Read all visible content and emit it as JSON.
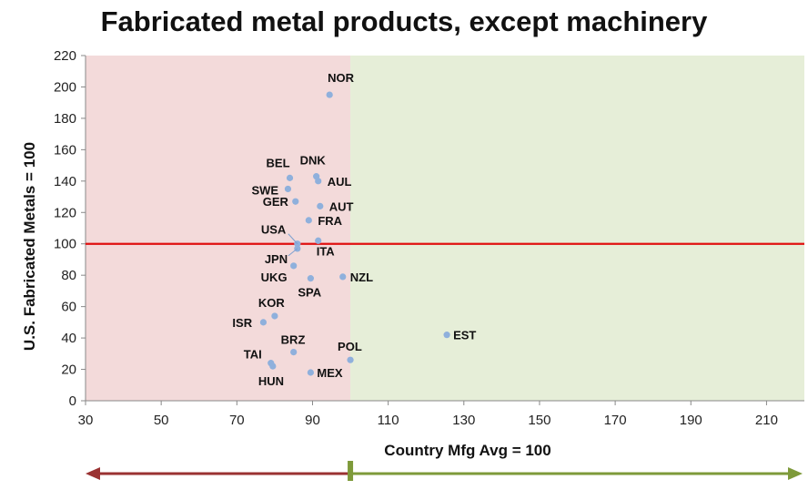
{
  "chart_data": {
    "type": "scatter",
    "title": "Fabricated metal products, except machinery",
    "xlabel": "Country Mfg Avg = 100",
    "ylabel": "U.S. Fabricated Metals = 100",
    "xlim": [
      30,
      220
    ],
    "ylim": [
      0,
      220
    ],
    "x_ticks": [
      30,
      50,
      70,
      90,
      110,
      130,
      150,
      170,
      190,
      210
    ],
    "y_ticks": [
      0,
      20,
      40,
      60,
      80,
      100,
      120,
      140,
      160,
      180,
      200,
      220
    ],
    "reference_lines": {
      "horizontal_y": 100,
      "vertical_x": 100
    },
    "colors": {
      "left_region": "#f3dada",
      "right_region": "#e6eed8",
      "reference_line": "#e01010",
      "points": "#8fb0dc",
      "left_arrow": "#9a3232",
      "right_arrow": "#7e9a3a"
    },
    "points": [
      {
        "label": "NOR",
        "x": 94.5,
        "y": 195
      },
      {
        "label": "DNK",
        "x": 91,
        "y": 143
      },
      {
        "label": "BEL",
        "x": 84,
        "y": 142
      },
      {
        "label": "AUL",
        "x": 91.5,
        "y": 140
      },
      {
        "label": "SWE",
        "x": 83.5,
        "y": 135
      },
      {
        "label": "GER",
        "x": 85.5,
        "y": 127
      },
      {
        "label": "AUT",
        "x": 92,
        "y": 124
      },
      {
        "label": "FRA",
        "x": 89,
        "y": 115
      },
      {
        "label": "USA",
        "x": 86,
        "y": 100
      },
      {
        "label": "ITA",
        "x": 91.5,
        "y": 102
      },
      {
        "label": "JPN",
        "x": 86,
        "y": 97
      },
      {
        "label": "UKG",
        "x": 85,
        "y": 86
      },
      {
        "label": "SPA",
        "x": 89.5,
        "y": 78
      },
      {
        "label": "NZL",
        "x": 98,
        "y": 79
      },
      {
        "label": "KOR",
        "x": 80,
        "y": 54
      },
      {
        "label": "ISR",
        "x": 77,
        "y": 50
      },
      {
        "label": "EST",
        "x": 125.5,
        "y": 42
      },
      {
        "label": "BRZ",
        "x": 85,
        "y": 31
      },
      {
        "label": "POL",
        "x": 100,
        "y": 26
      },
      {
        "label": "TAI",
        "x": 79,
        "y": 24
      },
      {
        "label": "HUN",
        "x": 79.5,
        "y": 22
      },
      {
        "label": "MEX",
        "x": 89.5,
        "y": 18
      }
    ]
  }
}
